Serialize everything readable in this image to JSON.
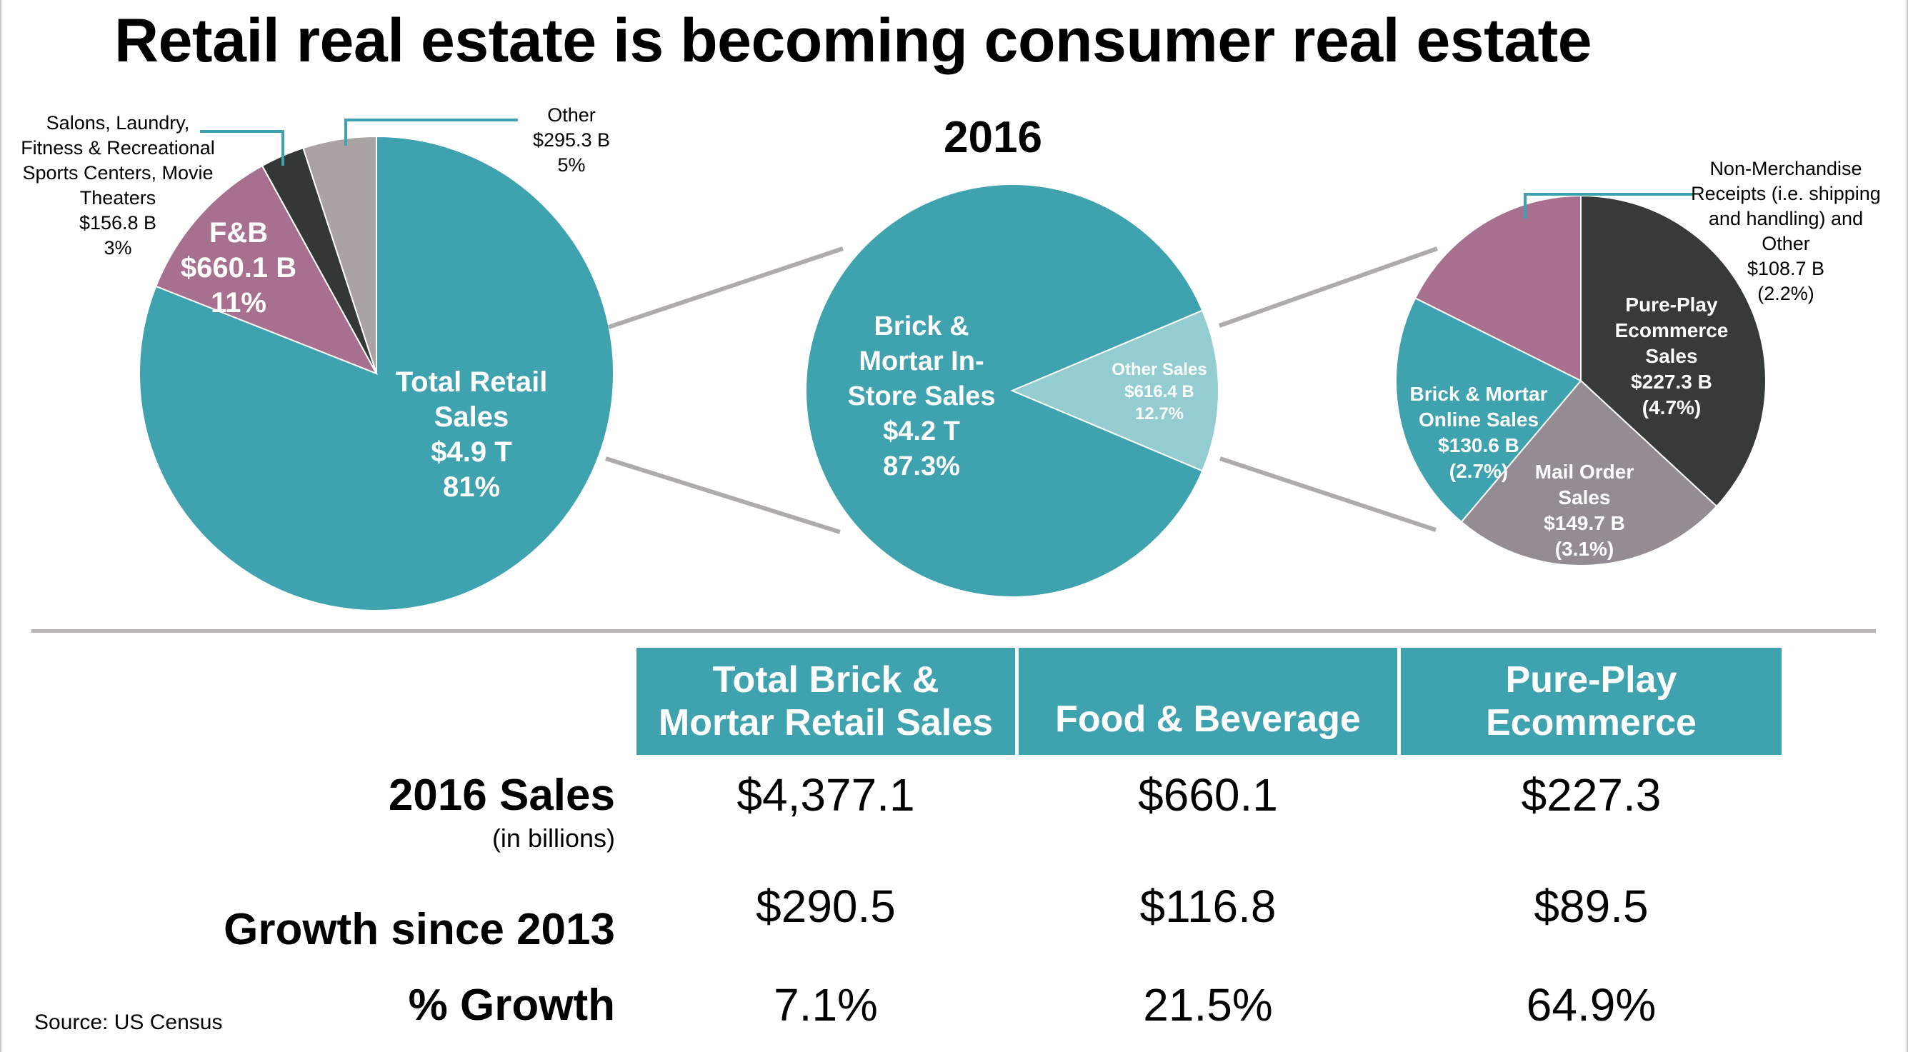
{
  "title": "Retail real estate is becoming consumer real estate",
  "year": "2016",
  "chart_data": [
    {
      "type": "pie",
      "slices": [
        {
          "lines": [
            "Total Retail",
            "Sales",
            "$4.9 T",
            "81%"
          ],
          "value": 81,
          "color": "#3ea3af"
        },
        {
          "lines": [
            "F&B",
            "$660.1 B",
            "11%"
          ],
          "value": 11,
          "color": "#a8708f"
        },
        {
          "lines": [
            "Salons, Laundry,",
            "Fitness & Recreational",
            "Sports Centers, Movie",
            "Theaters",
            "$156.8 B",
            "3%"
          ],
          "value": 3,
          "color": "#333836"
        },
        {
          "lines": [
            "Other",
            "$295.3 B",
            "5%"
          ],
          "value": 5,
          "color": "#aba3a3"
        }
      ]
    },
    {
      "type": "pie",
      "slices": [
        {
          "lines": [
            "Brick &",
            "Mortar In-",
            "Store Sales",
            "$4.2 T",
            "87.3%"
          ],
          "value": 87.3,
          "color": "#3ea3af"
        },
        {
          "lines": [
            "Other Sales",
            "$616.4 B",
            "12.7%"
          ],
          "value": 12.7,
          "color": "#93cdd2"
        }
      ]
    },
    {
      "type": "pie",
      "slices": [
        {
          "lines": [
            "Pure-Play",
            "Ecommerce",
            "Sales",
            "$227.3 B",
            "(4.7%)"
          ],
          "value": 227.3,
          "color": "#363a38"
        },
        {
          "lines": [
            "Mail Order",
            "Sales",
            "$149.7 B",
            "(3.1%)"
          ],
          "value": 149.7,
          "color": "#958c93"
        },
        {
          "lines": [
            "Brick & Mortar",
            "Online Sales",
            "$130.6 B",
            "(2.7%)"
          ],
          "value": 130.6,
          "color": "#3ea3af"
        },
        {
          "lines": [
            "Non-Merchandise",
            "Receipts (i.e. shipping",
            "and handling) and",
            "Other",
            "$108.7 B",
            "(2.2%)"
          ],
          "value": 108.7,
          "color": "#a8708f"
        }
      ]
    },
    {
      "type": "table",
      "columns": [
        "Total Brick & Mortar Retail Sales",
        "Food & Beverage",
        "Pure-Play Ecommerce"
      ],
      "rows": [
        {
          "label": "2016 Sales",
          "note": "(in billions)",
          "values": [
            "$4,377.1",
            "$660.1",
            "$227.3"
          ]
        },
        {
          "label": "Growth since 2013",
          "values": [
            "$290.5",
            "$116.8",
            "$89.5"
          ]
        },
        {
          "label": "% Growth",
          "values": [
            "7.1%",
            "21.5%",
            "64.9%"
          ]
        }
      ]
    }
  ],
  "table": {
    "headers": [
      {
        "line1": "Total Brick &",
        "line2": "Mortar Retail Sales"
      },
      {
        "line1": "Food & Beverage",
        "line2": ""
      },
      {
        "line1": "Pure-Play",
        "line2": "Ecommerce"
      }
    ],
    "rows": [
      {
        "label": "2016 Sales",
        "note": "(in billions)",
        "values": [
          "$4,377.1",
          "$660.1",
          "$227.3"
        ]
      },
      {
        "label": "Growth since 2013",
        "values": [
          "$290.5",
          "$116.8",
          "$89.5"
        ]
      },
      {
        "label": "% Growth",
        "values": [
          "7.1%",
          "21.5%",
          "64.9%"
        ]
      }
    ]
  },
  "source": "Source: US Census"
}
